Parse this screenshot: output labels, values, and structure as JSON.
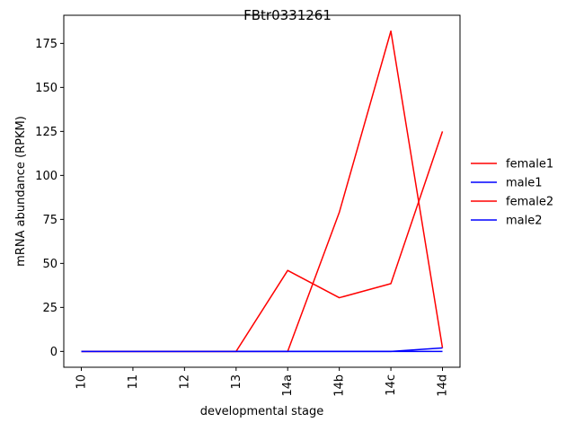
{
  "chart_data": {
    "type": "line",
    "title": "FBtr0331261",
    "xlabel": "developmental stage",
    "ylabel": "mRNA abundance (RPKM)",
    "categories": [
      "10",
      "11",
      "12",
      "13",
      "14a",
      "14b",
      "14c",
      "14d"
    ],
    "ylim": [
      -9,
      191
    ],
    "yticks": [
      0,
      25,
      50,
      75,
      100,
      125,
      150,
      175
    ],
    "grid": false,
    "legend_position": "right",
    "series": [
      {
        "name": "female1",
        "color": "#ff0000",
        "values": [
          0,
          0,
          0,
          0,
          0,
          79,
          182,
          2
        ]
      },
      {
        "name": "male1",
        "color": "#0000ff",
        "values": [
          0,
          0,
          0,
          0,
          0,
          0,
          0,
          2
        ]
      },
      {
        "name": "female2",
        "color": "#ff0000",
        "values": [
          0,
          0,
          0,
          0,
          46,
          30.5,
          38.5,
          125
        ]
      },
      {
        "name": "male2",
        "color": "#0000ff",
        "values": [
          0,
          0,
          0,
          0,
          0,
          0,
          0,
          0
        ]
      }
    ]
  }
}
